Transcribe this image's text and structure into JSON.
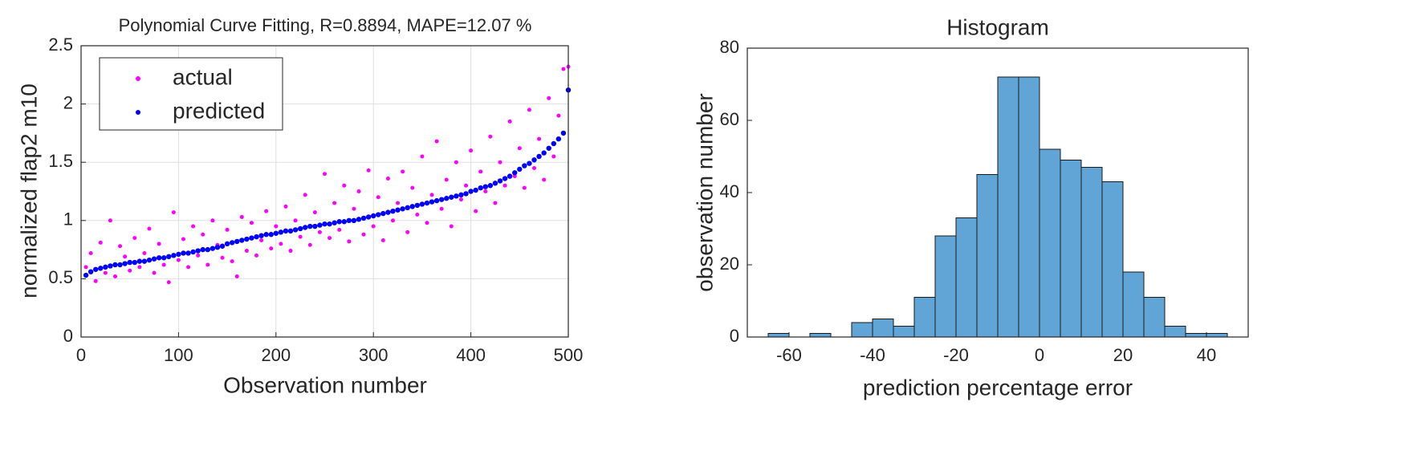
{
  "chart_data": [
    {
      "type": "scatter",
      "title": "Polynomial Curve Fitting, R=0.8894, MAPE=12.07 %",
      "x_label": "Observation number",
      "y_label": "normalized flap2 m10",
      "x": [
        5,
        10,
        15,
        20,
        25,
        30,
        35,
        40,
        45,
        50,
        55,
        60,
        65,
        70,
        75,
        80,
        85,
        90,
        95,
        100,
        105,
        110,
        115,
        120,
        125,
        130,
        135,
        140,
        145,
        150,
        155,
        160,
        165,
        170,
        175,
        180,
        185,
        190,
        195,
        200,
        205,
        210,
        215,
        220,
        225,
        230,
        235,
        240,
        245,
        250,
        255,
        260,
        265,
        270,
        275,
        280,
        285,
        290,
        295,
        300,
        305,
        310,
        315,
        320,
        325,
        330,
        335,
        340,
        345,
        350,
        355,
        360,
        365,
        370,
        375,
        380,
        385,
        390,
        395,
        400,
        405,
        410,
        415,
        420,
        425,
        430,
        435,
        440,
        445,
        450,
        455,
        460,
        465,
        470,
        475,
        480,
        485,
        490,
        495,
        500
      ],
      "series": [
        {
          "name": "actual",
          "color": "#ff00ff",
          "values": [
            0.6,
            0.72,
            0.48,
            0.81,
            0.55,
            1.0,
            0.52,
            0.78,
            0.69,
            0.57,
            0.85,
            0.6,
            0.72,
            0.93,
            0.55,
            0.8,
            0.62,
            0.47,
            1.07,
            0.66,
            0.84,
            0.6,
            0.95,
            0.7,
            0.88,
            0.62,
            1.0,
            0.79,
            0.68,
            0.92,
            0.65,
            0.52,
            1.03,
            0.74,
            0.98,
            0.7,
            0.83,
            1.08,
            0.76,
            0.95,
            0.8,
            1.12,
            0.74,
            1.0,
            0.86,
            1.22,
            0.79,
            1.07,
            0.9,
            1.4,
            0.85,
            1.15,
            0.92,
            1.3,
            0.82,
            1.1,
            1.25,
            0.88,
            1.43,
            0.95,
            1.2,
            0.83,
            1.36,
            1.0,
            1.15,
            1.42,
            0.9,
            1.28,
            1.05,
            1.55,
            0.98,
            1.22,
            1.68,
            1.1,
            1.35,
            0.95,
            1.5,
            1.18,
            1.3,
            1.6,
            1.08,
            1.42,
            1.25,
            1.72,
            1.15,
            1.5,
            1.3,
            1.85,
            1.38,
            1.62,
            1.28,
            1.95,
            1.45,
            1.7,
            1.35,
            2.05,
            1.55,
            1.9,
            2.3,
            2.32
          ]
        },
        {
          "name": "predicted",
          "color": "#0000ff",
          "values": [
            0.53,
            0.56,
            0.58,
            0.59,
            0.6,
            0.61,
            0.62,
            0.62,
            0.63,
            0.64,
            0.64,
            0.65,
            0.65,
            0.66,
            0.67,
            0.68,
            0.68,
            0.69,
            0.7,
            0.71,
            0.72,
            0.72,
            0.73,
            0.74,
            0.75,
            0.75,
            0.76,
            0.77,
            0.78,
            0.8,
            0.81,
            0.82,
            0.83,
            0.84,
            0.85,
            0.86,
            0.87,
            0.88,
            0.88,
            0.89,
            0.9,
            0.91,
            0.91,
            0.92,
            0.93,
            0.94,
            0.95,
            0.95,
            0.96,
            0.97,
            0.97,
            0.98,
            0.99,
            0.99,
            1.0,
            1.0,
            1.01,
            1.02,
            1.03,
            1.04,
            1.05,
            1.06,
            1.07,
            1.08,
            1.09,
            1.1,
            1.11,
            1.12,
            1.13,
            1.14,
            1.15,
            1.16,
            1.17,
            1.18,
            1.19,
            1.2,
            1.21,
            1.22,
            1.23,
            1.25,
            1.26,
            1.28,
            1.29,
            1.3,
            1.32,
            1.34,
            1.36,
            1.38,
            1.41,
            1.44,
            1.47,
            1.49,
            1.52,
            1.55,
            1.58,
            1.62,
            1.66,
            1.7,
            1.75,
            2.12
          ]
        }
      ],
      "xlim": [
        0,
        500
      ],
      "xticks": [
        0,
        100,
        200,
        300,
        400,
        500
      ],
      "ylim": [
        0,
        2.5
      ],
      "yticks": [
        0,
        0.5,
        1,
        1.5,
        2,
        2.5
      ],
      "grid": true,
      "legend": "upper left"
    },
    {
      "type": "histogram",
      "title": "Histogram",
      "x_label": "prediction percentage error",
      "y_label": "observation number",
      "bins": [
        -65,
        -60,
        -55,
        -50,
        -45,
        -40,
        -35,
        -30,
        -25,
        -20,
        -15,
        -10,
        -5,
        0,
        5,
        10,
        15,
        20,
        25,
        30,
        35,
        40,
        45
      ],
      "values": [
        1,
        0,
        1,
        0,
        4,
        5,
        3,
        11,
        28,
        33,
        45,
        72,
        72,
        52,
        49,
        47,
        43,
        18,
        11,
        3,
        1,
        1
      ],
      "color": "#61a4d6",
      "xlim": [
        -70,
        50
      ],
      "xticks": [
        -60,
        -40,
        -20,
        0,
        20,
        40
      ],
      "ylim": [
        0,
        80
      ],
      "yticks": [
        0,
        20,
        40,
        60,
        80
      ],
      "grid": false
    }
  ]
}
